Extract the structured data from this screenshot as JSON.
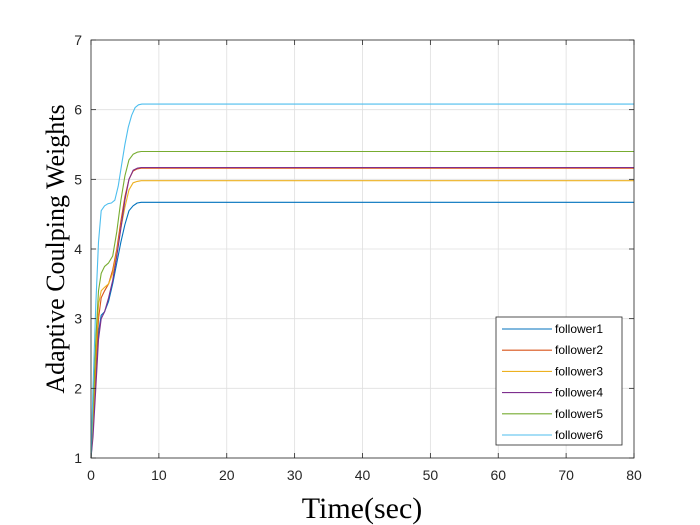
{
  "chart_data": {
    "type": "line",
    "title": "",
    "xlabel": "Time(sec)",
    "ylabel": "Adaptive Coulping Weights",
    "xlim": [
      0,
      80
    ],
    "ylim": [
      1,
      7
    ],
    "xticks": [
      0,
      10,
      20,
      30,
      40,
      50,
      60,
      70,
      80
    ],
    "yticks": [
      1,
      2,
      3,
      4,
      5,
      6,
      7
    ],
    "grid": true,
    "legend_position": "bottom-right",
    "series": [
      {
        "name": "follower1",
        "color": "#0072BD",
        "x": [
          0,
          0.3,
          0.7,
          1.1,
          1.5,
          2.0,
          2.6,
          3.2,
          3.8,
          4.4,
          5.0,
          5.6,
          6.2,
          6.8,
          7.4,
          8.2,
          10,
          20,
          40,
          60,
          80
        ],
        "y": [
          1.0,
          1.4,
          2.1,
          2.8,
          3.05,
          3.1,
          3.25,
          3.5,
          3.8,
          4.1,
          4.35,
          4.55,
          4.62,
          4.66,
          4.67,
          4.67,
          4.67,
          4.67,
          4.67,
          4.67,
          4.67
        ]
      },
      {
        "name": "follower2",
        "color": "#D95319",
        "x": [
          0,
          0.3,
          0.7,
          1.1,
          1.5,
          2.0,
          2.6,
          3.2,
          3.8,
          4.4,
          5.0,
          5.6,
          6.2,
          6.8,
          7.4,
          8.2,
          10,
          20,
          40,
          60,
          80
        ],
        "y": [
          1.0,
          1.5,
          2.3,
          3.0,
          3.3,
          3.4,
          3.5,
          3.7,
          4.0,
          4.4,
          4.75,
          5.0,
          5.12,
          5.15,
          5.16,
          5.16,
          5.16,
          5.16,
          5.16,
          5.16,
          5.16
        ]
      },
      {
        "name": "follower3",
        "color": "#EDB120",
        "x": [
          0,
          0.3,
          0.7,
          1.1,
          1.5,
          2.0,
          2.6,
          3.2,
          3.8,
          4.4,
          5.0,
          5.6,
          6.2,
          6.8,
          7.4,
          8.2,
          10,
          20,
          40,
          60,
          80
        ],
        "y": [
          1.0,
          1.6,
          2.5,
          3.2,
          3.4,
          3.45,
          3.5,
          3.65,
          3.95,
          4.3,
          4.6,
          4.85,
          4.95,
          4.97,
          4.98,
          4.98,
          4.98,
          4.98,
          4.98,
          4.98,
          4.98
        ]
      },
      {
        "name": "follower4",
        "color": "#7E2F8E",
        "x": [
          0,
          0.3,
          0.7,
          1.1,
          1.5,
          2.0,
          2.6,
          3.2,
          3.8,
          4.4,
          5.0,
          5.6,
          6.2,
          6.8,
          7.4,
          8.2,
          10,
          20,
          40,
          60,
          80
        ],
        "y": [
          1.0,
          1.3,
          2.0,
          2.7,
          3.0,
          3.1,
          3.3,
          3.55,
          3.9,
          4.3,
          4.7,
          5.0,
          5.13,
          5.16,
          5.17,
          5.17,
          5.17,
          5.17,
          5.17,
          5.17,
          5.17
        ]
      },
      {
        "name": "follower5",
        "color": "#77AC30",
        "x": [
          0,
          0.3,
          0.7,
          1.1,
          1.5,
          2.0,
          2.6,
          3.2,
          3.8,
          4.4,
          5.0,
          5.6,
          6.2,
          6.8,
          7.4,
          8.2,
          10,
          20,
          40,
          60,
          80
        ],
        "y": [
          1.0,
          1.7,
          2.7,
          3.4,
          3.65,
          3.75,
          3.8,
          3.9,
          4.25,
          4.7,
          5.05,
          5.28,
          5.36,
          5.39,
          5.4,
          5.4,
          5.4,
          5.4,
          5.4,
          5.4,
          5.4
        ]
      },
      {
        "name": "follower6",
        "color": "#4DBEEE",
        "x": [
          0,
          0.3,
          0.7,
          1.1,
          1.5,
          2.0,
          2.5,
          3.0,
          3.5,
          4.0,
          4.5,
          5.0,
          5.5,
          6.0,
          6.5,
          7.0,
          7.5,
          8.5,
          10,
          20,
          40,
          60,
          80
        ],
        "y": [
          1.0,
          2.0,
          3.2,
          4.1,
          4.55,
          4.62,
          4.65,
          4.66,
          4.7,
          4.9,
          5.2,
          5.5,
          5.75,
          5.92,
          6.03,
          6.07,
          6.08,
          6.08,
          6.08,
          6.08,
          6.08,
          6.08,
          6.08
        ]
      }
    ]
  }
}
